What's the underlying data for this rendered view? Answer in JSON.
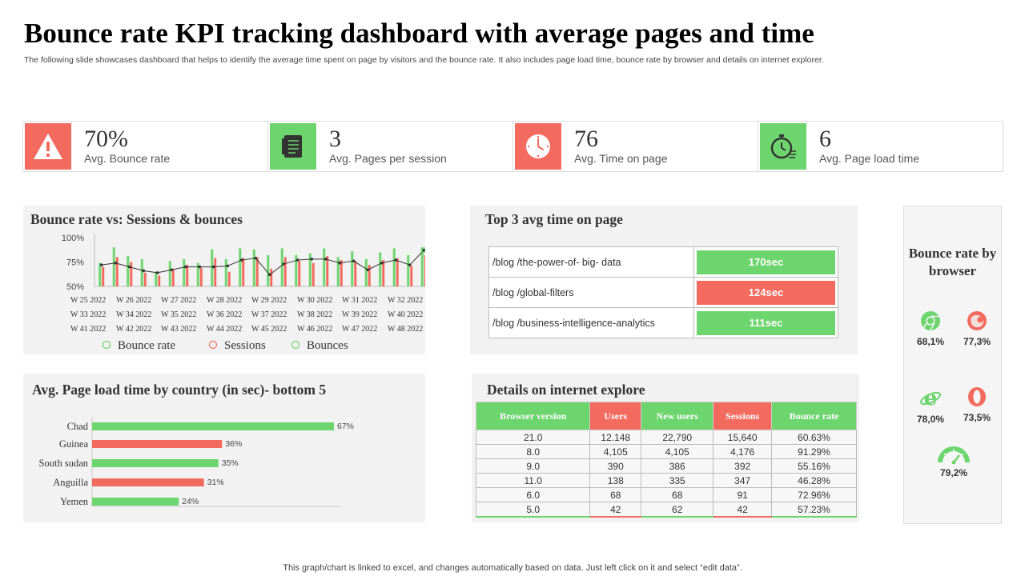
{
  "title": "Bounce rate KPI tracking dashboard with average pages and time",
  "subtitle": "The following slide showcases dashboard that helps to identify the average time spent on page by visitors and the bounce rate. It also includes page load time, bounce rate by browser and details on internet explorer.",
  "footnote": "This graph/chart is linked to excel, and changes automatically based on data. Just left click on it and select “edit data”.",
  "colors": {
    "green": "#6dd56d",
    "red": "#f36b5e",
    "line": "#333333"
  },
  "kpis": [
    {
      "value": "70%",
      "label": "Avg. Bounce rate",
      "icon": "warning-icon",
      "color": "#f36b5e"
    },
    {
      "value": "3",
      "label": "Avg. Pages per session",
      "icon": "document-icon",
      "color": "#6dd56d"
    },
    {
      "value": "76",
      "label": "Avg. Time on page",
      "icon": "clock-icon",
      "color": "#f36b5e"
    },
    {
      "value": "6",
      "label": "Avg. Page load time",
      "icon": "stopwatch-icon",
      "color": "#6dd56d"
    }
  ],
  "bounce_chart": {
    "title": "Bounce rate vs: Sessions & bounces",
    "week_labels": [
      [
        "W 25 2022",
        "W 26 2022",
        "W 27 2022",
        "W 28 2022",
        "W 29 2022",
        "W 30 2022",
        "W 31 2022",
        "W 32 2022"
      ],
      [
        "W 33 2022",
        "W 34 2022",
        "W 35 2022",
        "W 36 2022",
        "W 37 2022",
        "W 38 2022",
        "W 39 2022",
        "W 40 2022"
      ],
      [
        "W 41 2022",
        "W 42 2022",
        "W 43 2022",
        "W 44 2022",
        "W 45 2022",
        "W 46 2022",
        "W 47 2022",
        "W 48 2022"
      ]
    ],
    "legend": [
      "Bounce rate",
      "Sessions",
      "Bounces"
    ]
  },
  "top3": {
    "title": "Top 3 avg time on page",
    "rows": [
      {
        "path": "/blog /the-power-of-  big- data",
        "time": "170sec",
        "color": "#6dd56d"
      },
      {
        "path": "/blog /global-filters",
        "time": "124sec",
        "color": "#f36b5e"
      },
      {
        "path": "/blog /business-intelligence-analytics",
        "time": "111sec",
        "color": "#6dd56d"
      }
    ]
  },
  "load_chart": {
    "title": "Avg. Page load time by country (in sec)- bottom 5"
  },
  "ie": {
    "title": "Details on internet explore",
    "headers": [
      "Browser version",
      "Users",
      "New users",
      "Sessions",
      "Bounce rate"
    ],
    "header_colors": [
      "#6dd56d",
      "#f36b5e",
      "#6dd56d",
      "#f36b5e",
      "#6dd56d"
    ],
    "rows": [
      [
        "21.0",
        "12.148",
        "22,790",
        "15,640",
        "60.63%"
      ],
      [
        "8.0",
        "4,105",
        "4,105",
        "4,176",
        "91.29%"
      ],
      [
        "9.0",
        "390",
        "386",
        "392",
        "55.16%"
      ],
      [
        "11.0",
        "138",
        "335",
        "347",
        "46.28%"
      ],
      [
        "6.0",
        "68",
        "68",
        "91",
        "72.96%"
      ],
      [
        "5.0",
        "42",
        "62",
        "42",
        "57.23%"
      ]
    ]
  },
  "browsers": {
    "title": "Bounce rate by browser",
    "items": [
      {
        "name": "chrome-icon",
        "value": "68,1%",
        "color": "#6dd56d"
      },
      {
        "name": "firefox-icon",
        "value": "77,3%",
        "color": "#f36b5e"
      },
      {
        "name": "internet-explorer-icon",
        "value": "78,0%",
        "color": "#6dd56d"
      },
      {
        "name": "opera-icon",
        "value": "73,5%",
        "color": "#f36b5e"
      },
      {
        "name": "gauge-icon",
        "value": "79,2%",
        "color": "#6dd56d"
      }
    ]
  },
  "chart_data": [
    {
      "type": "bar",
      "title": "Bounce rate vs: Sessions & bounces",
      "ylim": [
        50,
        100
      ],
      "yticks": [
        "50%",
        "75%",
        "100%"
      ],
      "categories": [
        "W 25 2022",
        "W 26 2022",
        "W 27 2022",
        "W 28 2022",
        "W 29 2022",
        "W 30 2022",
        "W 31 2022",
        "W 32 2022",
        "W 33 2022",
        "W 34 2022",
        "W 35 2022",
        "W 36 2022",
        "W 37 2022",
        "W 38 2022",
        "W 39 2022",
        "W 40 2022",
        "W 41 2022",
        "W 42 2022",
        "W 43 2022",
        "W 44 2022",
        "W 45 2022",
        "W 46 2022",
        "W 47 2022",
        "W 48 2022"
      ],
      "series": [
        {
          "name": "Bounce rate",
          "kind": "line",
          "values": [
            72,
            74,
            70,
            66,
            64,
            67,
            70,
            70,
            70,
            71,
            77,
            79,
            62,
            73,
            77,
            78,
            78,
            74,
            76,
            67,
            74,
            77,
            72,
            87
          ]
        },
        {
          "name": "Sessions",
          "kind": "bar",
          "values": [
            70,
            80,
            75,
            64,
            61,
            68,
            72,
            69,
            79,
            65,
            79,
            80,
            68,
            80,
            76,
            74,
            81,
            77,
            76,
            72,
            77,
            79,
            71,
            82
          ]
        },
        {
          "name": "Bounces",
          "kind": "bar",
          "values": [
            74,
            90,
            81,
            78,
            65,
            76,
            78,
            74,
            88,
            78,
            89,
            88,
            82,
            89,
            82,
            84,
            89,
            80,
            86,
            78,
            85,
            89,
            82,
            90
          ]
        }
      ],
      "legend": "bottom"
    },
    {
      "type": "bar",
      "orientation": "horizontal",
      "title": "Avg. Page load time by country (in sec)- bottom 5",
      "categories": [
        "Chad",
        "Guinea",
        "South sudan",
        "Anguilla",
        "Yemen"
      ],
      "values": [
        67,
        36,
        35,
        31,
        24
      ],
      "value_labels": [
        "67%",
        "36%",
        "35%",
        "31%",
        "24%"
      ],
      "colors": [
        "#6dd56d",
        "#f36b5e",
        "#6dd56d",
        "#f36b5e",
        "#6dd56d"
      ]
    }
  ]
}
